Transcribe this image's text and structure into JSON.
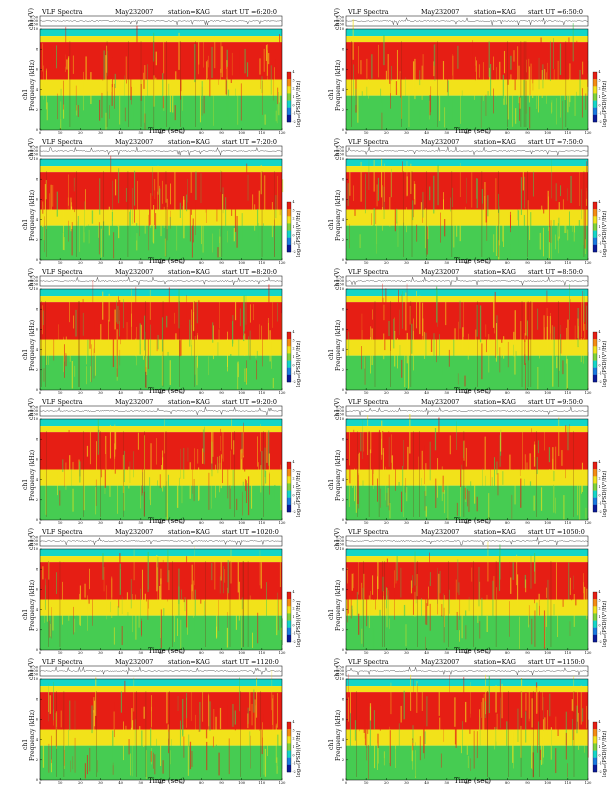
{
  "header": {
    "title": "VLF Spectra",
    "date": "May232007",
    "station": "station=KAG",
    "start_prefix": "start  UT ="
  },
  "labels": {
    "ch1_axis": "ch1 (V)",
    "freq_axis_1": "ch1",
    "freq_axis_2": "Frequency (kHz)",
    "colorbar": "log₁₀(PSD)(V²/Hz)",
    "xlabel": "Time (sec)"
  },
  "colorbar_ticks": [
    "4",
    "3",
    "2",
    "1",
    "0",
    "-1",
    "-2"
  ],
  "chart_data": {
    "type": "heatmap",
    "panels": [
      {
        "id": "p1",
        "start_ut": "6:20:0"
      },
      {
        "id": "p2",
        "start_ut": "6:50:0"
      },
      {
        "id": "p3",
        "start_ut": "7:20:0"
      },
      {
        "id": "p4",
        "start_ut": "7:50:0"
      },
      {
        "id": "p5",
        "start_ut": "8:20:0"
      },
      {
        "id": "p6",
        "start_ut": "8:50:0"
      },
      {
        "id": "p7",
        "start_ut": "9:20:0"
      },
      {
        "id": "p8",
        "start_ut": "9:50:0"
      },
      {
        "id": "p9",
        "start_ut": "1020:0"
      },
      {
        "id": "p10",
        "start_ut": "1050:0"
      },
      {
        "id": "p11",
        "start_ut": "1120:0"
      },
      {
        "id": "p12",
        "start_ut": "1150:0"
      }
    ],
    "xlim": [
      0,
      120
    ],
    "x_ticks": [
      0,
      10,
      20,
      30,
      40,
      50,
      60,
      70,
      80,
      90,
      100,
      110,
      120
    ],
    "ylim": [
      0,
      10
    ],
    "y_ticks": [
      0,
      2,
      4,
      6,
      8,
      10
    ],
    "ch1_ticks": [
      "0.30",
      "0.00",
      "-0.30"
    ],
    "colors": {
      "band_cyan": "#12d6c8",
      "band_yellow": "#f2e21a",
      "band_red": "#e61e14",
      "band_green": "#46cc52",
      "line": "#111111"
    }
  }
}
